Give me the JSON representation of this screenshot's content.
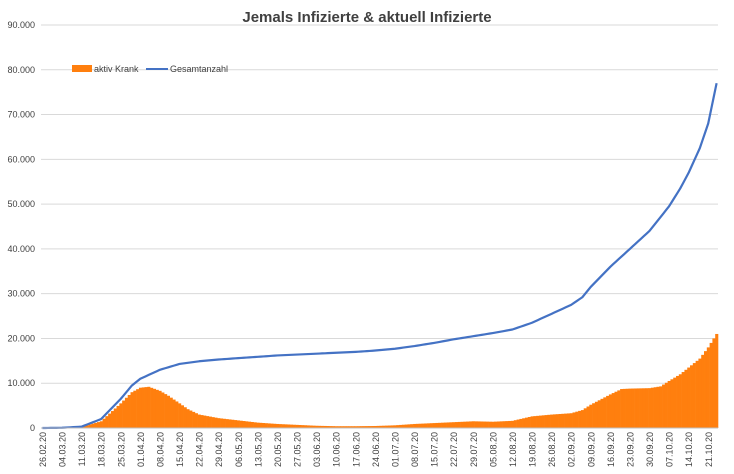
{
  "chart_data": {
    "type": "bar+line",
    "title": "Jemals Infizierte & aktuell Infizierte",
    "xlabel": "",
    "ylabel": "",
    "ylim": [
      0,
      90000
    ],
    "y_ticks": [
      "0",
      "10.000",
      "20.000",
      "30.000",
      "40.000",
      "50.000",
      "60.000",
      "70.000",
      "80.000",
      "90.000"
    ],
    "y_tick_values": [
      0,
      10000,
      20000,
      30000,
      40000,
      50000,
      60000,
      70000,
      80000,
      90000
    ],
    "x_start": "2020-02-26",
    "x_end": "2020-10-24",
    "x_ticks": [
      "26.02.20",
      "04.03.20",
      "11.03.20",
      "18.03.20",
      "25.03.20",
      "01.04.20",
      "08.04.20",
      "15.04.20",
      "22.04.20",
      "29.04.20",
      "06.05.20",
      "13.05.20",
      "20.05.20",
      "27.05.20",
      "03.06.20",
      "10.06.20",
      "17.06.20",
      "24.06.20",
      "01.07.20",
      "08.07.20",
      "15.07.20",
      "22.07.20",
      "29.07.20",
      "05.08.20",
      "12.08.20",
      "19.08.20",
      "26.08.20",
      "02.09.20",
      "09.09.20",
      "16.09.20",
      "23.09.20",
      "30.09.20",
      "07.10.20",
      "14.10.20",
      "21.10.20"
    ],
    "grid": true,
    "legend_position": "top-left",
    "colors": {
      "bars": "#ff7f0e",
      "line": "#4472c4"
    },
    "series": [
      {
        "name": "aktiv Krank",
        "type": "bar",
        "points": [
          [
            "2020-02-26",
            0
          ],
          [
            "2020-03-04",
            50
          ],
          [
            "2020-03-11",
            250
          ],
          [
            "2020-03-18",
            1500
          ],
          [
            "2020-03-25",
            5500
          ],
          [
            "2020-03-29",
            8000
          ],
          [
            "2020-04-01",
            9000
          ],
          [
            "2020-04-04",
            9200
          ],
          [
            "2020-04-08",
            8300
          ],
          [
            "2020-04-11",
            7200
          ],
          [
            "2020-04-15",
            5500
          ],
          [
            "2020-04-18",
            4200
          ],
          [
            "2020-04-22",
            3000
          ],
          [
            "2020-04-29",
            2200
          ],
          [
            "2020-05-06",
            1700
          ],
          [
            "2020-05-13",
            1200
          ],
          [
            "2020-05-20",
            900
          ],
          [
            "2020-05-27",
            700
          ],
          [
            "2020-06-03",
            500
          ],
          [
            "2020-06-10",
            400
          ],
          [
            "2020-06-17",
            400
          ],
          [
            "2020-06-24",
            450
          ],
          [
            "2020-07-01",
            600
          ],
          [
            "2020-07-08",
            900
          ],
          [
            "2020-07-15",
            1100
          ],
          [
            "2020-07-22",
            1300
          ],
          [
            "2020-07-29",
            1500
          ],
          [
            "2020-08-05",
            1400
          ],
          [
            "2020-08-12",
            1600
          ],
          [
            "2020-08-19",
            2600
          ],
          [
            "2020-08-26",
            3000
          ],
          [
            "2020-09-02",
            3300
          ],
          [
            "2020-09-06",
            4000
          ],
          [
            "2020-09-09",
            5200
          ],
          [
            "2020-09-16",
            7500
          ],
          [
            "2020-09-20",
            8700
          ],
          [
            "2020-09-23",
            8800
          ],
          [
            "2020-09-30",
            8900
          ],
          [
            "2020-10-04",
            9300
          ],
          [
            "2020-10-07",
            10500
          ],
          [
            "2020-10-11",
            12000
          ],
          [
            "2020-10-14",
            13500
          ],
          [
            "2020-10-18",
            15500
          ],
          [
            "2020-10-21",
            18000
          ],
          [
            "2020-10-24",
            21000
          ]
        ]
      },
      {
        "name": "Gesamtanzahl",
        "type": "line",
        "points": [
          [
            "2020-02-26",
            0
          ],
          [
            "2020-03-04",
            50
          ],
          [
            "2020-03-11",
            300
          ],
          [
            "2020-03-18",
            2000
          ],
          [
            "2020-03-25",
            6500
          ],
          [
            "2020-03-29",
            9500
          ],
          [
            "2020-04-01",
            11000
          ],
          [
            "2020-04-08",
            13000
          ],
          [
            "2020-04-15",
            14300
          ],
          [
            "2020-04-22",
            14900
          ],
          [
            "2020-04-29",
            15300
          ],
          [
            "2020-05-06",
            15600
          ],
          [
            "2020-05-13",
            15900
          ],
          [
            "2020-05-20",
            16200
          ],
          [
            "2020-05-27",
            16400
          ],
          [
            "2020-06-03",
            16600
          ],
          [
            "2020-06-10",
            16800
          ],
          [
            "2020-06-17",
            17000
          ],
          [
            "2020-06-24",
            17300
          ],
          [
            "2020-07-01",
            17700
          ],
          [
            "2020-07-08",
            18300
          ],
          [
            "2020-07-15",
            19000
          ],
          [
            "2020-07-22",
            19800
          ],
          [
            "2020-07-29",
            20500
          ],
          [
            "2020-08-05",
            21200
          ],
          [
            "2020-08-12",
            22000
          ],
          [
            "2020-08-19",
            23500
          ],
          [
            "2020-08-26",
            25500
          ],
          [
            "2020-09-02",
            27500
          ],
          [
            "2020-09-06",
            29200
          ],
          [
            "2020-09-09",
            31500
          ],
          [
            "2020-09-16",
            36000
          ],
          [
            "2020-09-23",
            40000
          ],
          [
            "2020-09-30",
            44000
          ],
          [
            "2020-10-07",
            49500
          ],
          [
            "2020-10-11",
            53500
          ],
          [
            "2020-10-14",
            57000
          ],
          [
            "2020-10-18",
            62500
          ],
          [
            "2020-10-21",
            68000
          ],
          [
            "2020-10-24",
            77000
          ]
        ]
      }
    ]
  }
}
